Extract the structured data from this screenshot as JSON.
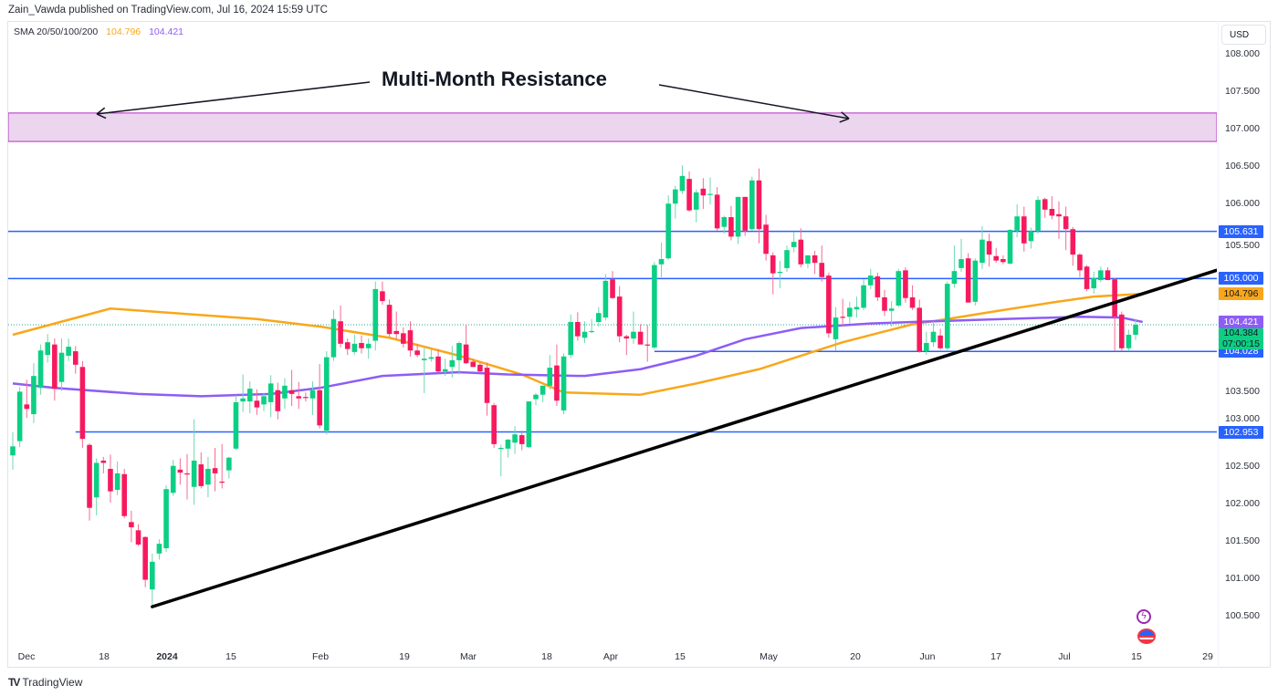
{
  "header": {
    "publisher_line": "Zain_Vawda published on TradingView.com, Jul 16, 2024 15:59 UTC"
  },
  "legend": {
    "indicator": "SMA 20/50/100/200",
    "value_orange": "104.796",
    "value_purple": "104.421"
  },
  "currency_button": "USD",
  "footer": {
    "brand": "TradingView"
  },
  "colors": {
    "up": "#089981",
    "up_body": "#0ccf84",
    "down": "#f7195e",
    "sma100": "#f9a71a",
    "sma200": "#8d5df5",
    "levels": "#2962ff",
    "trendline": "#000000",
    "zone_fill": "#ecd5ef",
    "zone_border": "#b52bc4"
  },
  "chart_data": {
    "type": "candlestick",
    "title": "",
    "annotation": "Multi-Month Resistance",
    "y_ticks": [
      "108.000",
      "107.500",
      "107.000",
      "106.500",
      "106.000",
      "105.500",
      "103.500",
      "103.000",
      "102.500",
      "102.000",
      "101.500",
      "101.000",
      "100.500"
    ],
    "ylim": [
      100.22,
      108.35
    ],
    "x_ticks": [
      "Dec",
      "18",
      "2024",
      "15",
      "Feb",
      "19",
      "Mar",
      "18",
      "Apr",
      "15",
      "May",
      "20",
      "Jun",
      "17",
      "Jul",
      "15",
      "29"
    ],
    "candles_ohlc": [
      [
        102.64,
        102.95,
        102.45,
        102.76
      ],
      [
        102.83,
        103.55,
        102.75,
        103.49
      ],
      [
        103.32,
        103.65,
        103.14,
        103.26
      ],
      [
        103.19,
        103.87,
        103.07,
        103.7
      ],
      [
        103.54,
        104.12,
        103.45,
        104.04
      ],
      [
        103.98,
        104.26,
        103.88,
        104.15
      ],
      [
        104.12,
        104.2,
        103.37,
        103.53
      ],
      [
        103.62,
        104.2,
        103.5,
        104.01
      ],
      [
        103.97,
        104.2,
        103.9,
        104.09
      ],
      [
        104.03,
        104.1,
        103.73,
        103.85
      ],
      [
        103.82,
        103.9,
        102.74,
        102.86
      ],
      [
        102.78,
        102.8,
        101.77,
        101.94
      ],
      [
        102.08,
        102.6,
        101.84,
        102.54
      ],
      [
        102.57,
        102.62,
        102.4,
        102.54
      ],
      [
        102.46,
        102.65,
        102.01,
        102.16
      ],
      [
        102.18,
        102.56,
        102.11,
        102.4
      ],
      [
        102.39,
        102.46,
        101.8,
        101.83
      ],
      [
        101.75,
        101.9,
        101.48,
        101.68
      ],
      [
        101.64,
        101.72,
        101.43,
        101.45
      ],
      [
        101.55,
        101.56,
        100.88,
        100.98
      ],
      [
        100.85,
        101.33,
        100.62,
        101.22
      ],
      [
        101.33,
        101.52,
        101.25,
        101.46
      ],
      [
        101.4,
        102.24,
        101.35,
        102.19
      ],
      [
        102.14,
        102.58,
        102.1,
        102.5
      ],
      [
        102.45,
        102.6,
        102.25,
        102.41
      ],
      [
        102.4,
        102.66,
        102.05,
        102.39
      ],
      [
        102.22,
        103.12,
        101.98,
        102.57
      ],
      [
        102.52,
        102.68,
        102.2,
        102.23
      ],
      [
        102.25,
        102.62,
        102.08,
        102.46
      ],
      [
        102.47,
        102.74,
        102.16,
        102.4
      ],
      [
        102.29,
        102.79,
        102.2,
        102.28
      ],
      [
        102.44,
        102.62,
        102.33,
        102.61
      ],
      [
        102.73,
        103.44,
        102.71,
        103.35
      ],
      [
        103.36,
        103.72,
        103.22,
        103.4
      ],
      [
        103.36,
        103.63,
        103.2,
        103.53
      ],
      [
        103.37,
        103.52,
        103.18,
        103.28
      ],
      [
        103.32,
        103.47,
        103.23,
        103.43
      ],
      [
        103.35,
        103.71,
        103.15,
        103.6
      ],
      [
        103.51,
        103.61,
        103.12,
        103.23
      ],
      [
        103.4,
        103.67,
        103.26,
        103.57
      ],
      [
        103.51,
        103.78,
        103.3,
        103.46
      ],
      [
        103.43,
        103.62,
        103.26,
        103.4
      ],
      [
        103.42,
        103.48,
        103.36,
        103.41
      ],
      [
        103.4,
        103.63,
        103.18,
        103.51
      ],
      [
        103.51,
        103.86,
        103.0,
        103.04
      ],
      [
        102.97,
        104.03,
        102.92,
        103.95
      ],
      [
        103.95,
        104.58,
        103.9,
        104.46
      ],
      [
        104.43,
        104.64,
        104.08,
        104.13
      ],
      [
        104.15,
        104.2,
        103.98,
        104.06
      ],
      [
        104.02,
        104.25,
        103.98,
        104.13
      ],
      [
        104.14,
        104.24,
        104.0,
        104.07
      ],
      [
        104.07,
        104.2,
        103.93,
        104.13
      ],
      [
        104.17,
        104.96,
        104.04,
        104.86
      ],
      [
        104.83,
        104.96,
        104.65,
        104.7
      ],
      [
        104.65,
        104.72,
        104.22,
        104.26
      ],
      [
        104.3,
        104.56,
        104.19,
        104.26
      ],
      [
        104.27,
        104.35,
        104.08,
        104.13
      ],
      [
        104.31,
        104.43,
        103.96,
        104.04
      ],
      [
        104.04,
        104.13,
        103.95,
        103.98
      ],
      [
        103.91,
        104.09,
        103.47,
        103.93
      ],
      [
        103.93,
        104.07,
        103.89,
        103.95
      ],
      [
        103.96,
        104.06,
        103.75,
        103.76
      ],
      [
        103.76,
        103.93,
        103.7,
        103.79
      ],
      [
        103.82,
        104.1,
        103.68,
        103.91
      ],
      [
        103.91,
        104.16,
        103.72,
        104.14
      ],
      [
        104.12,
        104.39,
        103.86,
        103.87
      ],
      [
        103.89,
        103.93,
        103.82,
        103.82
      ],
      [
        103.85,
        103.88,
        103.75,
        103.76
      ],
      [
        103.81,
        103.88,
        103.17,
        103.34
      ],
      [
        103.31,
        103.34,
        102.74,
        102.79
      ],
      [
        102.73,
        102.78,
        102.36,
        102.74
      ],
      [
        102.73,
        102.86,
        102.61,
        102.85
      ],
      [
        102.81,
        103.03,
        102.66,
        102.92
      ],
      [
        102.91,
        102.97,
        102.71,
        102.79
      ],
      [
        102.75,
        103.36,
        102.74,
        103.36
      ],
      [
        103.39,
        103.47,
        103.31,
        103.45
      ],
      [
        103.45,
        103.57,
        103.35,
        103.57
      ],
      [
        103.57,
        103.98,
        103.52,
        103.81
      ],
      [
        103.84,
        104.12,
        103.3,
        103.37
      ],
      [
        103.24,
        104.0,
        103.19,
        103.96
      ],
      [
        103.98,
        104.52,
        103.94,
        104.42
      ],
      [
        104.42,
        104.55,
        104.17,
        104.23
      ],
      [
        104.21,
        104.43,
        104.14,
        104.29
      ],
      [
        104.29,
        104.46,
        104.27,
        104.3
      ],
      [
        104.42,
        104.62,
        104.36,
        104.54
      ],
      [
        104.48,
        105.06,
        104.44,
        104.97
      ],
      [
        104.99,
        105.1,
        104.73,
        104.74
      ],
      [
        104.76,
        104.9,
        104.15,
        104.23
      ],
      [
        104.23,
        104.25,
        103.98,
        104.2
      ],
      [
        104.2,
        104.56,
        104.13,
        104.29
      ],
      [
        104.29,
        104.39,
        104.15,
        104.12
      ],
      [
        104.12,
        104.38,
        103.89,
        104.11
      ],
      [
        104.08,
        105.22,
        104.05,
        105.18
      ],
      [
        105.19,
        105.48,
        105.02,
        105.26
      ],
      [
        105.27,
        106.11,
        105.25,
        106.0
      ],
      [
        106.0,
        106.24,
        105.8,
        106.19
      ],
      [
        106.17,
        106.51,
        106.13,
        106.37
      ],
      [
        106.33,
        106.43,
        105.89,
        105.91
      ],
      [
        105.92,
        106.19,
        105.75,
        106.15
      ],
      [
        106.2,
        106.34,
        105.93,
        106.11
      ],
      [
        106.12,
        106.35,
        105.99,
        106.13
      ],
      [
        106.12,
        106.22,
        105.64,
        105.67
      ],
      [
        105.69,
        105.84,
        105.6,
        105.82
      ],
      [
        105.82,
        105.97,
        105.51,
        105.56
      ],
      [
        105.56,
        106.09,
        105.46,
        106.09
      ],
      [
        106.09,
        106.09,
        105.57,
        105.64
      ],
      [
        105.66,
        106.36,
        105.64,
        106.31
      ],
      [
        106.31,
        106.47,
        105.47,
        105.66
      ],
      [
        105.72,
        105.85,
        105.24,
        105.33
      ],
      [
        105.31,
        105.35,
        104.79,
        105.07
      ],
      [
        105.08,
        105.24,
        104.87,
        105.09
      ],
      [
        105.14,
        105.44,
        105.09,
        105.38
      ],
      [
        105.42,
        105.62,
        105.35,
        105.49
      ],
      [
        105.52,
        105.67,
        105.15,
        105.19
      ],
      [
        105.2,
        105.31,
        105.14,
        105.31
      ],
      [
        105.31,
        105.37,
        105.06,
        105.21
      ],
      [
        105.21,
        105.44,
        104.96,
        105.02
      ],
      [
        105.04,
        105.08,
        104.21,
        104.27
      ],
      [
        104.19,
        104.62,
        104.04,
        104.48
      ],
      [
        104.49,
        104.73,
        104.36,
        104.48
      ],
      [
        104.49,
        104.69,
        104.4,
        104.61
      ],
      [
        104.59,
        104.76,
        104.48,
        104.62
      ],
      [
        104.61,
        104.99,
        104.58,
        104.91
      ],
      [
        104.91,
        105.13,
        104.86,
        105.04
      ],
      [
        105.03,
        105.08,
        104.7,
        104.75
      ],
      [
        104.75,
        104.85,
        104.5,
        104.57
      ],
      [
        104.57,
        104.7,
        104.36,
        104.6
      ],
      [
        104.64,
        105.13,
        104.62,
        105.1
      ],
      [
        105.11,
        105.15,
        104.68,
        104.74
      ],
      [
        104.75,
        104.91,
        104.58,
        104.61
      ],
      [
        104.61,
        104.72,
        104.01,
        104.03
      ],
      [
        104.03,
        104.29,
        103.98,
        104.14
      ],
      [
        104.15,
        104.43,
        104.09,
        104.29
      ],
      [
        104.24,
        104.33,
        104.05,
        104.07
      ],
      [
        104.07,
        104.96,
        104.03,
        104.93
      ],
      [
        104.93,
        105.44,
        104.88,
        105.1
      ],
      [
        105.14,
        105.53,
        105.09,
        105.26
      ],
      [
        105.27,
        105.34,
        104.73,
        104.68
      ],
      [
        104.69,
        105.27,
        104.64,
        105.24
      ],
      [
        105.21,
        105.7,
        105.13,
        105.52
      ],
      [
        105.5,
        105.6,
        105.16,
        105.32
      ],
      [
        105.3,
        105.41,
        105.21,
        105.24
      ],
      [
        105.26,
        105.31,
        105.19,
        105.22
      ],
      [
        105.2,
        105.66,
        105.19,
        105.65
      ],
      [
        105.64,
        105.99,
        105.55,
        105.83
      ],
      [
        105.83,
        105.96,
        105.36,
        105.47
      ],
      [
        105.5,
        105.68,
        105.4,
        105.63
      ],
      [
        105.64,
        106.1,
        105.6,
        106.05
      ],
      [
        106.06,
        106.08,
        105.81,
        105.92
      ],
      [
        105.93,
        106.1,
        105.79,
        105.84
      ],
      [
        105.86,
        106.03,
        105.53,
        105.83
      ],
      [
        105.83,
        105.96,
        105.38,
        105.66
      ],
      [
        105.66,
        105.69,
        105.17,
        105.32
      ],
      [
        105.32,
        105.34,
        105.02,
        105.11
      ],
      [
        105.16,
        105.18,
        104.83,
        104.86
      ],
      [
        104.87,
        105.09,
        104.8,
        105.01
      ],
      [
        104.98,
        105.16,
        104.95,
        105.11
      ],
      [
        105.11,
        105.15,
        104.98,
        104.98
      ],
      [
        104.99,
        105.01,
        104.03,
        104.49
      ],
      [
        104.52,
        104.56,
        104.03,
        104.07
      ],
      [
        104.07,
        104.32,
        104.03,
        104.25
      ],
      [
        104.25,
        104.45,
        104.18,
        104.384
      ]
    ],
    "series": [
      {
        "name": "SMA 100",
        "color": "#f9a71a",
        "points": [
          [
            0,
            104.25
          ],
          [
            14,
            104.6
          ],
          [
            35,
            104.46
          ],
          [
            44,
            104.36
          ],
          [
            54,
            104.21
          ],
          [
            64,
            103.97
          ],
          [
            73,
            103.72
          ],
          [
            79,
            103.48
          ],
          [
            90,
            103.45
          ],
          [
            98,
            103.6
          ],
          [
            107,
            103.79
          ],
          [
            111,
            103.91
          ],
          [
            119,
            104.15
          ],
          [
            124,
            104.27
          ],
          [
            129,
            104.39
          ],
          [
            134,
            104.46
          ],
          [
            142,
            104.58
          ],
          [
            149,
            104.68
          ],
          [
            155,
            104.76
          ],
          [
            162,
            104.796
          ]
        ]
      },
      {
        "name": "SMA 200",
        "color": "#8d5df5",
        "points": [
          [
            0,
            103.6
          ],
          [
            6,
            103.54
          ],
          [
            18,
            103.46
          ],
          [
            27,
            103.43
          ],
          [
            37,
            103.46
          ],
          [
            44,
            103.54
          ],
          [
            53,
            103.7
          ],
          [
            64,
            103.75
          ],
          [
            71,
            103.72
          ],
          [
            82,
            103.7
          ],
          [
            90,
            103.79
          ],
          [
            98,
            103.97
          ],
          [
            105,
            104.19
          ],
          [
            113,
            104.34
          ],
          [
            123,
            104.4
          ],
          [
            132,
            104.43
          ],
          [
            142,
            104.46
          ],
          [
            153,
            104.49
          ],
          [
            159,
            104.48
          ],
          [
            162,
            104.421
          ]
        ]
      }
    ],
    "horizontal_levels": [
      {
        "label": "105.631",
        "value": 105.631,
        "from_index": -1
      },
      {
        "label": "105.000",
        "value": 105.0,
        "from_index": -1
      },
      {
        "label": "104.028",
        "value": 104.028,
        "from_index": 92
      },
      {
        "label": "102.953",
        "value": 102.953,
        "from_index": 9
      }
    ],
    "resistance_zone": {
      "low": 106.83,
      "high": 107.21
    },
    "trendline": [
      [
        20,
        100.62
      ],
      [
        172.6,
        105.11
      ]
    ],
    "last_price": {
      "value": "104.384",
      "countdown": "07:00:15"
    },
    "sma_tags": [
      {
        "label": "104.796",
        "value": 104.796,
        "color": "#f9a71a"
      },
      {
        "label": "104.421",
        "value": 104.421,
        "color": "#8d5df5"
      }
    ]
  }
}
